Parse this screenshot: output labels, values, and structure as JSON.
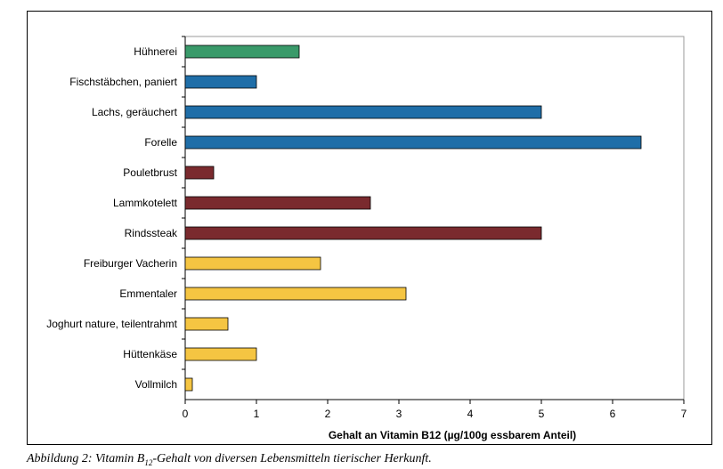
{
  "chart_data": {
    "type": "bar",
    "orientation": "horizontal",
    "categories": [
      "Hühnerei",
      "Fischstäbchen, paniert",
      "Lachs, geräuchert",
      "Forelle",
      "Pouletbrust",
      "Lammkotelett",
      "Rindssteak",
      "Freiburger Vacherin",
      "Emmentaler",
      "Joghurt nature, teilentrahmt",
      "Hüttenkäse",
      "Vollmilch"
    ],
    "values": [
      1.6,
      1.0,
      5.0,
      6.4,
      0.4,
      2.6,
      5.0,
      1.9,
      3.1,
      0.6,
      1.0,
      0.1
    ],
    "bar_colors": [
      "#3a9a6a",
      "#1f6ea8",
      "#1f6ea8",
      "#1f6ea8",
      "#7a2a2e",
      "#7a2a2e",
      "#7a2a2e",
      "#f5c542",
      "#f5c542",
      "#f5c542",
      "#f5c542",
      "#f5c542"
    ],
    "xlim": [
      0,
      7
    ],
    "xticks": [
      0,
      1,
      2,
      3,
      4,
      5,
      6,
      7
    ],
    "xlabel": "Gehalt an Vitamin B12 (µg/100g essbarem Anteil)",
    "ylabel": "",
    "title": "",
    "grid": false,
    "legend": "none"
  },
  "caption": {
    "prefix": "Abbildung 2: Vitamin B",
    "subscript": "12",
    "suffix": "-Gehalt von diversen Lebensmitteln tierischer Herkunft."
  }
}
